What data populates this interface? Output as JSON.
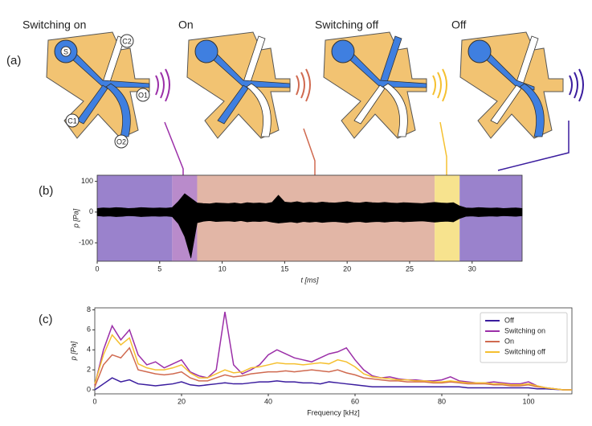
{
  "panel_labels": [
    "(a)",
    "(b)",
    "(c)"
  ],
  "diagram": {
    "states": [
      "Switching on",
      "On",
      "Switching off",
      "Off"
    ],
    "ports": [
      "S",
      "C2",
      "O1",
      "C1",
      "O2"
    ]
  },
  "chart_data": [
    {
      "type": "area",
      "xlabel": "t [ms]",
      "ylabel": "p [Pa]",
      "color": "#000000",
      "xlim": [
        0,
        34
      ],
      "ylim": [
        -160,
        120
      ],
      "xticks": [
        0,
        5,
        10,
        15,
        20,
        25,
        30
      ],
      "yticks": [
        -100,
        0,
        100
      ],
      "spans": [
        {
          "start": 0,
          "end": 6,
          "color": "#9a82cc"
        },
        {
          "start": 6,
          "end": 8,
          "color": "#b98bcb"
        },
        {
          "start": 8,
          "end": 27,
          "color": "#e2b6a6"
        },
        {
          "start": 27,
          "end": 29,
          "color": "#f7e38e"
        },
        {
          "start": 29,
          "end": 34,
          "color": "#9a82cc"
        }
      ],
      "x": [
        0,
        0.5,
        1,
        1.5,
        2,
        2.5,
        3,
        3.5,
        4,
        4.5,
        5,
        5.5,
        6,
        6.5,
        7,
        7.5,
        8,
        8.5,
        9,
        9.5,
        10,
        10.5,
        11,
        11.5,
        12,
        12.5,
        13,
        13.5,
        14,
        14.5,
        15,
        15.5,
        16,
        16.5,
        17,
        17.5,
        18,
        18.5,
        19,
        19.5,
        20,
        20.5,
        21,
        21.5,
        22,
        22.5,
        23,
        23.5,
        24,
        24.5,
        25,
        25.5,
        26,
        26.5,
        27,
        27.5,
        28,
        28.5,
        29,
        29.5,
        30,
        30.5,
        31,
        31.5,
        32,
        32.5,
        33,
        33.5,
        34
      ],
      "upper": [
        12,
        14,
        13,
        15,
        14,
        12,
        13,
        15,
        14,
        13,
        14,
        13,
        15,
        35,
        60,
        45,
        30,
        28,
        27,
        30,
        29,
        28,
        30,
        27,
        31,
        29,
        30,
        28,
        32,
        55,
        33,
        31,
        34,
        30,
        32,
        30,
        33,
        31,
        30,
        32,
        34,
        31,
        30,
        33,
        31,
        30,
        32,
        30,
        29,
        31,
        30,
        29,
        28,
        30,
        32,
        30,
        29,
        31,
        20,
        14,
        13,
        15,
        14,
        13,
        14,
        12,
        13,
        14,
        12
      ],
      "lower": [
        -12,
        -14,
        -13,
        -15,
        -14,
        -12,
        -13,
        -15,
        -14,
        -13,
        -14,
        -13,
        -15,
        -38,
        -80,
        -150,
        -35,
        -30,
        -28,
        -31,
        -30,
        -29,
        -31,
        -28,
        -32,
        -30,
        -31,
        -29,
        -33,
        -36,
        -34,
        -32,
        -35,
        -31,
        -33,
        -31,
        -34,
        -32,
        -31,
        -33,
        -35,
        -32,
        -31,
        -34,
        -32,
        -31,
        -33,
        -31,
        -30,
        -32,
        -31,
        -30,
        -29,
        -31,
        -33,
        -31,
        -30,
        -32,
        -21,
        -14,
        -13,
        -15,
        -14,
        -13,
        -14,
        -12,
        -13,
        -14,
        -12
      ]
    },
    {
      "type": "line",
      "xlabel": "Frequency [kHz]",
      "ylabel": "p [Pa]",
      "legend": "upper right",
      "xlim": [
        0,
        110
      ],
      "ylim": [
        -0.4,
        8.2
      ],
      "xticks": [
        0,
        20,
        40,
        60,
        80,
        100
      ],
      "yticks": [
        0,
        2,
        4,
        6,
        8
      ],
      "x": [
        0,
        2,
        4,
        6,
        8,
        10,
        12,
        14,
        16,
        18,
        20,
        22,
        24,
        26,
        28,
        30,
        32,
        34,
        36,
        38,
        40,
        42,
        44,
        46,
        48,
        50,
        52,
        54,
        56,
        58,
        60,
        62,
        64,
        66,
        68,
        70,
        72,
        74,
        76,
        78,
        80,
        82,
        84,
        86,
        88,
        90,
        92,
        94,
        96,
        98,
        100,
        102,
        104,
        106,
        108,
        110
      ],
      "series": [
        {
          "name": "Off",
          "color": "#3a1c9e",
          "values": [
            0,
            0.6,
            1.2,
            0.8,
            1.0,
            0.6,
            0.5,
            0.4,
            0.5,
            0.6,
            0.8,
            0.5,
            0.4,
            0.5,
            0.6,
            0.7,
            0.6,
            0.6,
            0.7,
            0.8,
            0.8,
            0.9,
            0.8,
            0.8,
            0.7,
            0.7,
            0.6,
            0.8,
            0.7,
            0.6,
            0.5,
            0.4,
            0.3,
            0.3,
            0.3,
            0.3,
            0.3,
            0.3,
            0.3,
            0.3,
            0.3,
            0.3,
            0.3,
            0.2,
            0.2,
            0.2,
            0.2,
            0.2,
            0.2,
            0.2,
            0.2,
            0.1,
            0.1,
            0.05,
            0,
            0
          ]
        },
        {
          "name": "Switching on",
          "color": "#9b2fa8",
          "values": [
            0.5,
            4.0,
            6.4,
            5.0,
            6.0,
            3.5,
            2.5,
            2.8,
            2.2,
            2.6,
            3.0,
            1.8,
            1.4,
            1.2,
            2.0,
            7.8,
            2.5,
            1.6,
            2.0,
            2.5,
            3.5,
            4.0,
            3.6,
            3.2,
            3.0,
            2.8,
            3.2,
            3.6,
            3.8,
            4.2,
            3.0,
            2.0,
            1.4,
            1.2,
            1.3,
            1.1,
            1.0,
            1.0,
            0.9,
            0.9,
            1.0,
            1.3,
            0.9,
            0.8,
            0.7,
            0.7,
            0.8,
            0.7,
            0.6,
            0.6,
            0.8,
            0.4,
            0.2,
            0.1,
            0,
            0
          ]
        },
        {
          "name": "On",
          "color": "#d06a50",
          "values": [
            0.3,
            2.5,
            3.5,
            3.2,
            4.2,
            2.0,
            1.8,
            1.6,
            1.5,
            1.6,
            1.8,
            1.2,
            0.9,
            0.9,
            1.2,
            1.5,
            1.3,
            1.4,
            1.6,
            1.7,
            1.8,
            1.8,
            1.9,
            1.8,
            1.9,
            2.0,
            1.9,
            1.8,
            2.0,
            1.7,
            1.5,
            1.2,
            1.1,
            1.0,
            0.9,
            0.9,
            0.8,
            0.8,
            0.8,
            0.7,
            0.7,
            0.8,
            0.7,
            0.6,
            0.6,
            0.6,
            0.5,
            0.5,
            0.4,
            0.4,
            0.5,
            0.3,
            0.2,
            0.1,
            0,
            0
          ]
        },
        {
          "name": "Switching off",
          "color": "#f5c030",
          "values": [
            0.6,
            3.5,
            5.5,
            4.5,
            5.2,
            2.6,
            2.2,
            2.0,
            2.0,
            2.2,
            2.5,
            1.7,
            1.2,
            1.2,
            1.6,
            2.0,
            1.7,
            1.8,
            2.2,
            2.3,
            2.5,
            2.7,
            2.6,
            2.6,
            2.5,
            2.6,
            2.7,
            2.6,
            3.0,
            2.8,
            2.3,
            1.6,
            1.3,
            1.2,
            1.1,
            1.0,
            1.0,
            0.9,
            0.9,
            0.8,
            0.8,
            0.9,
            0.8,
            0.7,
            0.7,
            0.7,
            0.6,
            0.6,
            0.5,
            0.5,
            0.6,
            0.4,
            0.2,
            0.1,
            0,
            0
          ]
        }
      ]
    }
  ]
}
